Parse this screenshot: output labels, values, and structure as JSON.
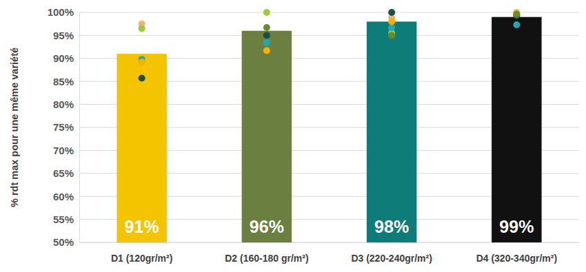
{
  "chart_data": {
    "type": "bar",
    "y_label": "% rdt max pour une même variété",
    "categories": [
      "D1 (120gr/m²)",
      "D2 (160-180 gr/m²)",
      "D3 (220-240gr/m²)",
      "D4 (320-340gr/m²)"
    ],
    "values": [
      91,
      96,
      98,
      99
    ],
    "value_labels": [
      "91%",
      "96%",
      "98%",
      "99%"
    ],
    "colors": [
      "#f5c400",
      "#6b8040",
      "#0e7d79",
      "#111111"
    ],
    "data_labels": true,
    "ylim": [
      50,
      100
    ],
    "yticks": [
      {
        "value": 50,
        "label": "50%"
      },
      {
        "value": 55,
        "label": "55%"
      },
      {
        "value": 60,
        "label": "60%"
      },
      {
        "value": 65,
        "label": "65%"
      },
      {
        "value": 70,
        "label": "70%"
      },
      {
        "value": 75,
        "label": "75%"
      },
      {
        "value": 80,
        "label": "80%"
      },
      {
        "value": 85,
        "label": "85%"
      },
      {
        "value": 90,
        "label": "90%"
      },
      {
        "value": 95,
        "label": "95%"
      },
      {
        "value": 100,
        "label": "100%"
      }
    ],
    "grid": true,
    "series": [
      {
        "type": "scatter",
        "marker": "circle",
        "color": "#f2b46a",
        "values": [
          97.5,
          null,
          98.8,
          100
        ]
      },
      {
        "type": "scatter",
        "marker": "circle",
        "color": "#9dcc3a",
        "values": [
          96.5,
          100,
          95.5,
          99.5
        ]
      },
      {
        "type": "scatter",
        "marker": "circle",
        "color": "#22a7b5",
        "values": [
          89.8,
          93.5,
          96.7,
          97.3
        ]
      },
      {
        "type": "scatter",
        "marker": "circle",
        "color": "#f2b400",
        "values": [
          89.2,
          91.7,
          98,
          99.8
        ]
      },
      {
        "type": "scatter",
        "marker": "circle",
        "color": "#1b4f45",
        "values": [
          85.7,
          95,
          100,
          99.3
        ]
      },
      {
        "type": "scatter",
        "marker": "circle",
        "color": "#6a8a2e",
        "values": [
          null,
          96.7,
          95,
          99.6
        ]
      }
    ]
  }
}
